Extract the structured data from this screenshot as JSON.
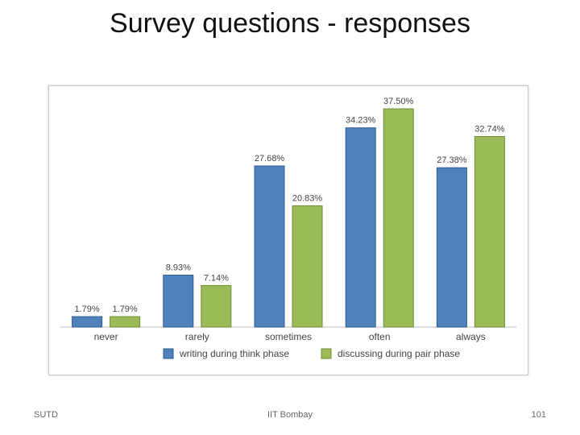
{
  "slide": {
    "title": "Survey questions - responses"
  },
  "footer": {
    "left": "SUTD",
    "center": "IIT Bombay",
    "right": "101"
  },
  "colors": {
    "series_1": "#4f81bd",
    "series_2": "#9bbb59",
    "series_1_stroke": "#2f5b8e",
    "series_2_stroke": "#6f8e35"
  },
  "chart_data": {
    "type": "bar",
    "categories": [
      "never",
      "rarely",
      "sometimes",
      "often",
      "always"
    ],
    "series": [
      {
        "name": "writing during think phase",
        "values": [
          1.79,
          8.93,
          27.68,
          34.23,
          27.38
        ],
        "labels": [
          "1.79%",
          "8.93%",
          "27.68%",
          "34.23%",
          "27.38%"
        ]
      },
      {
        "name": "discussing during pair phase",
        "values": [
          1.79,
          7.14,
          20.83,
          37.5,
          32.74
        ],
        "labels": [
          "1.79%",
          "7.14%",
          "20.83%",
          "37.50%",
          "32.74%"
        ]
      }
    ],
    "ylim": [
      0,
      40
    ],
    "grid": false,
    "legend": "bottom"
  }
}
